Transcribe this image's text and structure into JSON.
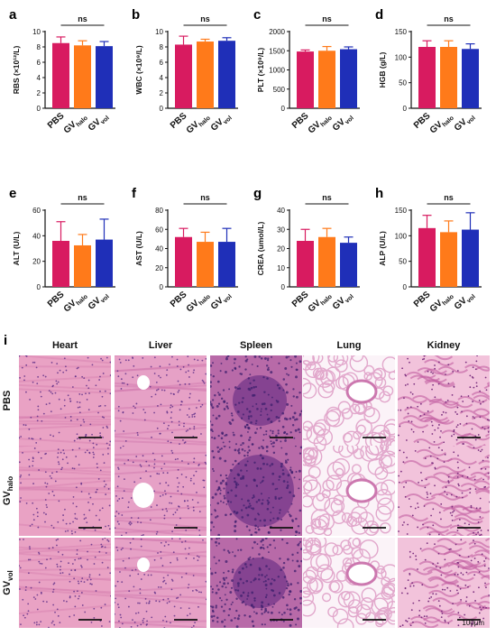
{
  "group_labels": [
    "PBS",
    "GV",
    "GV"
  ],
  "group_subscripts": [
    "",
    "halo",
    "vol"
  ],
  "colors": {
    "pbs": "#d81b60",
    "halo": "#ff7a1a",
    "vol": "#1f2fb8"
  },
  "chart_data": [
    {
      "panel": "a",
      "type": "bar",
      "ylabel": "RBS (×10¹²/L)",
      "ylim": [
        0,
        10
      ],
      "yticks": [
        0,
        2,
        4,
        6,
        8,
        10
      ],
      "values": [
        8.5,
        8.2,
        8.1
      ],
      "errors": [
        0.8,
        0.6,
        0.6
      ],
      "sig": "ns"
    },
    {
      "panel": "b",
      "type": "bar",
      "ylabel": "WBC (×10⁹/L)",
      "ylim": [
        0,
        10
      ],
      "yticks": [
        0,
        2,
        4,
        6,
        8,
        10
      ],
      "values": [
        8.3,
        8.7,
        8.8
      ],
      "errors": [
        1.1,
        0.3,
        0.4
      ],
      "sig": "ns"
    },
    {
      "panel": "c",
      "type": "bar",
      "ylabel": "PLT (×10⁹/L)",
      "ylim": [
        0,
        2000
      ],
      "yticks": [
        0,
        500,
        1000,
        1500,
        2000
      ],
      "values": [
        1480,
        1500,
        1540
      ],
      "errors": [
        40,
        110,
        60
      ],
      "sig": "ns"
    },
    {
      "panel": "d",
      "type": "bar",
      "ylabel": "HGB (g/L)",
      "ylim": [
        0,
        150
      ],
      "yticks": [
        0,
        50,
        100,
        150
      ],
      "values": [
        120,
        120,
        116
      ],
      "errors": [
        12,
        12,
        10
      ],
      "sig": "ns"
    },
    {
      "panel": "e",
      "type": "bar",
      "ylabel": "ALT (U/L)",
      "ylim": [
        0,
        60
      ],
      "yticks": [
        0,
        20,
        40,
        60
      ],
      "values": [
        36,
        32.5,
        37
      ],
      "errors": [
        15,
        8.5,
        16
      ],
      "sig": "ns"
    },
    {
      "panel": "f",
      "type": "bar",
      "ylabel": "AST (U/L)",
      "ylim": [
        0,
        80
      ],
      "yticks": [
        0,
        20,
        40,
        60,
        80
      ],
      "values": [
        52,
        47,
        47
      ],
      "errors": [
        9,
        10,
        14
      ],
      "sig": "ns"
    },
    {
      "panel": "g",
      "type": "bar",
      "ylabel": "CREA (umol/L)",
      "ylim": [
        0,
        40
      ],
      "yticks": [
        0,
        10,
        20,
        30,
        40
      ],
      "values": [
        24,
        26,
        23
      ],
      "errors": [
        6,
        4.5,
        3
      ],
      "sig": "ns"
    },
    {
      "panel": "h",
      "type": "bar",
      "ylabel": "ALP (U/L)",
      "ylim": [
        0,
        150
      ],
      "yticks": [
        0,
        50,
        100,
        150
      ],
      "values": [
        115,
        107,
        112
      ],
      "errors": [
        25,
        22,
        33
      ],
      "sig": "ns"
    }
  ],
  "histology": {
    "panel_label": "i",
    "columns": [
      "Heart",
      "Liver",
      "Spleen",
      "Lung",
      "Kidney"
    ],
    "rows": [
      {
        "label": "PBS",
        "sub": ""
      },
      {
        "label": "GV",
        "sub": "halo"
      },
      {
        "label": "GV",
        "sub": "vol"
      }
    ],
    "scale_label": "100μm"
  }
}
